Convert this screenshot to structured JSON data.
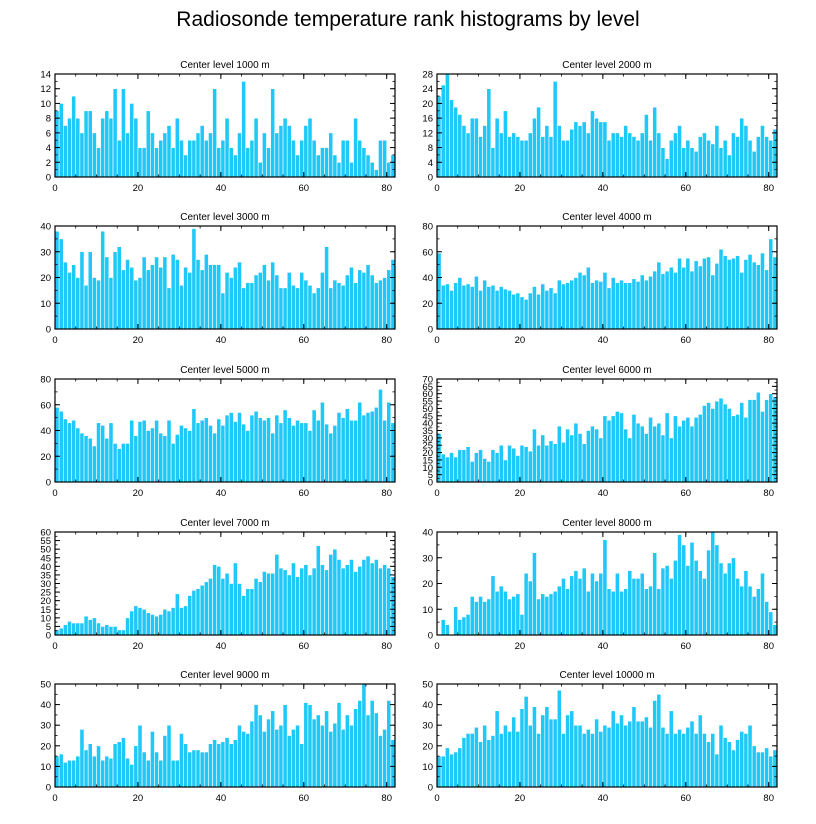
{
  "title": "Radiosonde temperature rank histograms by level",
  "colors": {
    "bar": "#1ec8f8",
    "bar_stroke": "#ffffff",
    "axis": "#000000"
  },
  "chart_data": [
    {
      "type": "bar",
      "title": "Center level 1000 m",
      "xlim": [
        0,
        82
      ],
      "ylim": [
        0,
        14
      ],
      "xticks": [
        0,
        20,
        40,
        60,
        80
      ],
      "yticks": [
        0,
        2,
        4,
        6,
        8,
        10,
        12,
        14
      ],
      "values": [
        9,
        10,
        7,
        8,
        11,
        8,
        6,
        9,
        9,
        6,
        4,
        8,
        9,
        8,
        12,
        5,
        12,
        6,
        10,
        8,
        4,
        4,
        9,
        6,
        4,
        5,
        6,
        7,
        4,
        8,
        5,
        3,
        5,
        5,
        6,
        7,
        5,
        6,
        12,
        4,
        5,
        8,
        4,
        3,
        6,
        13,
        4,
        5,
        8,
        2,
        6,
        4,
        12,
        6,
        7,
        8,
        7,
        5,
        3,
        5,
        7,
        8,
        5,
        3,
        4,
        4,
        6,
        3,
        2,
        5,
        5,
        2,
        8,
        5,
        4,
        3,
        2,
        1,
        5,
        5,
        2,
        3
      ]
    },
    {
      "type": "bar",
      "title": "Center level 2000 m",
      "xlim": [
        0,
        82
      ],
      "ylim": [
        0,
        28
      ],
      "xticks": [
        0,
        20,
        40,
        60,
        80
      ],
      "yticks": [
        0,
        4,
        8,
        12,
        16,
        20,
        24,
        28
      ],
      "values": [
        22,
        25,
        28,
        21,
        19,
        17,
        14,
        12,
        16,
        16,
        11,
        14,
        24,
        8,
        16,
        12,
        18,
        11,
        12,
        11,
        10,
        10,
        12,
        16,
        19,
        11,
        14,
        11,
        26,
        14,
        10,
        10,
        13,
        15,
        14,
        15,
        12,
        18,
        16,
        15,
        15,
        10,
        12,
        12,
        11,
        14,
        12,
        11,
        10,
        12,
        17,
        10,
        19,
        12,
        8,
        5,
        10,
        12,
        14,
        8,
        10,
        8,
        7,
        11,
        12,
        10,
        9,
        14,
        8,
        10,
        6,
        12,
        11,
        16,
        14,
        10,
        7,
        11,
        14,
        11,
        10,
        13
      ]
    },
    {
      "type": "bar",
      "title": "Center level 3000 m",
      "xlim": [
        0,
        82
      ],
      "ylim": [
        0,
        40
      ],
      "xticks": [
        0,
        20,
        40,
        60,
        80
      ],
      "yticks": [
        0,
        10,
        20,
        30,
        40
      ],
      "values": [
        38,
        35,
        26,
        22,
        25,
        20,
        30,
        17,
        30,
        20,
        19,
        38,
        28,
        20,
        30,
        32,
        23,
        27,
        24,
        19,
        20,
        28,
        23,
        25,
        28,
        24,
        28,
        16,
        29,
        27,
        17,
        24,
        22,
        39,
        27,
        23,
        29,
        25,
        25,
        25,
        14,
        22,
        20,
        24,
        26,
        16,
        18,
        18,
        21,
        22,
        25,
        19,
        26,
        21,
        16,
        16,
        22,
        17,
        16,
        22,
        19,
        17,
        14,
        16,
        22,
        32,
        16,
        19,
        18,
        17,
        21,
        24,
        18,
        23,
        22,
        25,
        21,
        18,
        19,
        20,
        23,
        27
      ]
    },
    {
      "type": "bar",
      "title": "Center level 4000 m",
      "xlim": [
        0,
        82
      ],
      "ylim": [
        0,
        80
      ],
      "xticks": [
        0,
        20,
        40,
        60,
        80
      ],
      "yticks": [
        0,
        20,
        40,
        60,
        80
      ],
      "values": [
        59,
        34,
        35,
        30,
        36,
        40,
        34,
        35,
        33,
        41,
        30,
        38,
        33,
        34,
        30,
        33,
        31,
        30,
        27,
        28,
        25,
        23,
        28,
        33,
        27,
        35,
        30,
        32,
        28,
        38,
        35,
        36,
        38,
        40,
        44,
        42,
        48,
        36,
        38,
        37,
        44,
        32,
        40,
        36,
        38,
        36,
        36,
        39,
        37,
        42,
        38,
        41,
        45,
        52,
        43,
        45,
        48,
        44,
        55,
        48,
        55,
        45,
        53,
        49,
        55,
        56,
        42,
        51,
        62,
        57,
        54,
        55,
        57,
        44,
        54,
        58,
        52,
        50,
        59,
        46,
        70,
        56
      ]
    },
    {
      "type": "bar",
      "title": "Center level 5000 m",
      "xlim": [
        0,
        82
      ],
      "ylim": [
        0,
        80
      ],
      "xticks": [
        0,
        20,
        40,
        60,
        80
      ],
      "yticks": [
        0,
        20,
        40,
        60,
        80
      ],
      "values": [
        58,
        55,
        49,
        46,
        48,
        42,
        38,
        36,
        34,
        28,
        46,
        44,
        34,
        46,
        30,
        26,
        30,
        30,
        48,
        36,
        47,
        48,
        40,
        42,
        48,
        38,
        36,
        48,
        30,
        37,
        44,
        42,
        40,
        57,
        46,
        48,
        50,
        44,
        38,
        49,
        44,
        52,
        54,
        47,
        54,
        45,
        40,
        52,
        55,
        50,
        48,
        50,
        38,
        52,
        46,
        56,
        50,
        44,
        48,
        46,
        46,
        40,
        56,
        48,
        62,
        45,
        38,
        44,
        54,
        50,
        57,
        48,
        48,
        62,
        52,
        54,
        55,
        58,
        72,
        48,
        62,
        46
      ]
    },
    {
      "type": "bar",
      "title": "Center level 6000 m",
      "xlim": [
        0,
        82
      ],
      "ylim": [
        0,
        70
      ],
      "xticks": [
        0,
        20,
        40,
        60,
        80
      ],
      "yticks": [
        0,
        5,
        10,
        15,
        20,
        25,
        30,
        35,
        40,
        45,
        50,
        55,
        60,
        65,
        70
      ],
      "values": [
        33,
        19,
        17,
        20,
        17,
        22,
        22,
        24,
        14,
        20,
        22,
        16,
        14,
        22,
        20,
        25,
        15,
        25,
        23,
        18,
        25,
        24,
        21,
        36,
        25,
        32,
        25,
        28,
        26,
        38,
        27,
        36,
        32,
        40,
        33,
        26,
        35,
        38,
        36,
        30,
        45,
        42,
        45,
        48,
        47,
        36,
        30,
        46,
        40,
        38,
        33,
        44,
        38,
        40,
        32,
        47,
        30,
        45,
        38,
        42,
        44,
        38,
        44,
        46,
        52,
        54,
        50,
        55,
        57,
        53,
        50,
        45,
        46,
        54,
        44,
        56,
        56,
        61,
        48,
        56,
        60,
        58
      ]
    },
    {
      "type": "bar",
      "title": "Center level 7000 m",
      "xlim": [
        0,
        82
      ],
      "ylim": [
        0,
        60
      ],
      "xticks": [
        0,
        20,
        40,
        60,
        80
      ],
      "yticks": [
        0,
        5,
        10,
        15,
        20,
        25,
        30,
        35,
        40,
        45,
        50,
        55,
        60
      ],
      "values": [
        3,
        4,
        6,
        8,
        7,
        7,
        7,
        11,
        9,
        10,
        7,
        5,
        6,
        5,
        5,
        3,
        3,
        10,
        14,
        17,
        16,
        15,
        13,
        12,
        11,
        12,
        15,
        14,
        16,
        24,
        16,
        17,
        23,
        26,
        27,
        29,
        31,
        33,
        41,
        40,
        33,
        36,
        30,
        42,
        30,
        23,
        27,
        27,
        33,
        31,
        37,
        36,
        36,
        47,
        39,
        38,
        35,
        42,
        34,
        39,
        41,
        35,
        39,
        52,
        41,
        38,
        47,
        50,
        44,
        39,
        41,
        44,
        37,
        40,
        44,
        46,
        42,
        44,
        39,
        41,
        39,
        34
      ]
    },
    {
      "type": "bar",
      "title": "Center level 8000 m",
      "xlim": [
        0,
        82
      ],
      "ylim": [
        0,
        40
      ],
      "xticks": [
        0,
        20,
        40,
        60,
        80
      ],
      "yticks": [
        0,
        10,
        20,
        30,
        40
      ],
      "values": [
        0,
        6,
        4,
        0,
        11,
        6,
        7,
        8,
        15,
        13,
        15,
        13,
        14,
        23,
        17,
        19,
        17,
        14,
        15,
        16,
        8,
        24,
        21,
        32,
        14,
        16,
        15,
        16,
        17,
        19,
        22,
        18,
        23,
        25,
        22,
        26,
        17,
        24,
        21,
        24,
        37,
        18,
        17,
        24,
        17,
        18,
        25,
        22,
        22,
        24,
        18,
        19,
        32,
        18,
        26,
        27,
        22,
        29,
        39,
        35,
        27,
        36,
        29,
        25,
        22,
        33,
        40,
        35,
        28,
        24,
        28,
        30,
        22,
        19,
        25,
        19,
        15,
        18,
        24,
        13,
        9,
        4
      ]
    },
    {
      "type": "bar",
      "title": "Center level 9000 m",
      "xlim": [
        0,
        82
      ],
      "ylim": [
        0,
        50
      ],
      "xticks": [
        0,
        20,
        40,
        60,
        80
      ],
      "yticks": [
        0,
        10,
        20,
        30,
        40,
        50
      ],
      "values": [
        15,
        16,
        12,
        13,
        13,
        15,
        28,
        18,
        21,
        15,
        20,
        13,
        15,
        14,
        21,
        22,
        24,
        14,
        11,
        20,
        30,
        17,
        13,
        27,
        17,
        13,
        25,
        30,
        13,
        13,
        26,
        21,
        17,
        18,
        18,
        17,
        17,
        21,
        23,
        21,
        22,
        24,
        21,
        23,
        30,
        27,
        26,
        32,
        40,
        35,
        27,
        33,
        37,
        28,
        30,
        40,
        25,
        28,
        30,
        21,
        41,
        40,
        33,
        35,
        30,
        37,
        27,
        31,
        41,
        28,
        35,
        30,
        38,
        42,
        50,
        35,
        42,
        36,
        25,
        28,
        42,
        23
      ]
    },
    {
      "type": "bar",
      "title": "Center level 10000 m",
      "xlim": [
        0,
        82
      ],
      "ylim": [
        0,
        50
      ],
      "xticks": [
        0,
        20,
        40,
        60,
        80
      ],
      "yticks": [
        0,
        10,
        20,
        30,
        40,
        50
      ],
      "values": [
        15,
        15,
        19,
        16,
        17,
        19,
        24,
        26,
        26,
        29,
        22,
        30,
        23,
        25,
        37,
        26,
        30,
        27,
        34,
        27,
        38,
        44,
        30,
        39,
        26,
        35,
        39,
        33,
        33,
        47,
        26,
        35,
        37,
        30,
        30,
        26,
        28,
        26,
        33,
        27,
        30,
        29,
        37,
        31,
        35,
        30,
        32,
        39,
        32,
        32,
        34,
        29,
        42,
        45,
        29,
        26,
        37,
        26,
        28,
        26,
        29,
        32,
        26,
        35,
        26,
        22,
        26,
        16,
        30,
        24,
        22,
        18,
        23,
        27,
        26,
        30,
        20,
        17,
        17,
        19,
        15,
        18
      ]
    }
  ]
}
